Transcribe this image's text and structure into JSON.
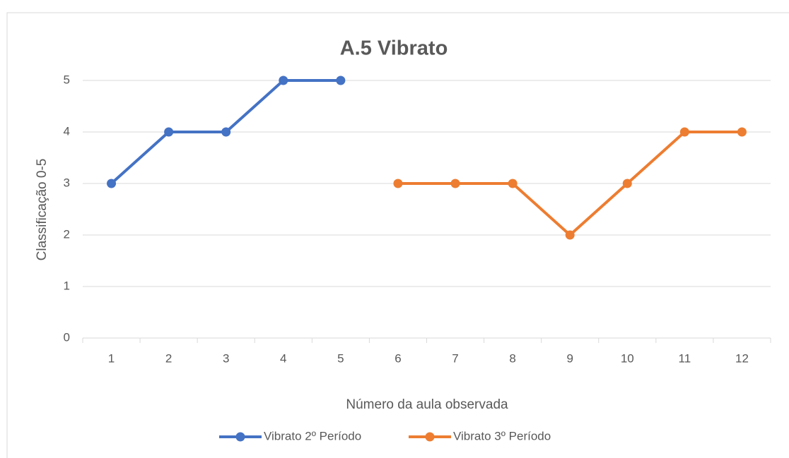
{
  "chart_data": {
    "type": "line",
    "title": "A.5 Vibrato",
    "xlabel": "Número da aula observada",
    "ylabel": "Classificação 0-5",
    "categories": [
      "1",
      "2",
      "3",
      "4",
      "5",
      "6",
      "7",
      "8",
      "9",
      "10",
      "11",
      "12"
    ],
    "series": [
      {
        "name": "Vibrato 2º Período",
        "color": "#4472c4",
        "values": [
          3,
          4,
          4,
          5,
          5,
          null,
          null,
          null,
          null,
          null,
          null,
          null
        ]
      },
      {
        "name": "Vibrato 3º Período",
        "color": "#ed7d31",
        "values": [
          null,
          null,
          null,
          null,
          null,
          3,
          3,
          3,
          2,
          3,
          4,
          4
        ]
      }
    ],
    "ylim": [
      0,
      5
    ],
    "yticks": [
      0,
      1,
      2,
      3,
      4,
      5
    ],
    "grid": true,
    "legend": "bottom"
  }
}
